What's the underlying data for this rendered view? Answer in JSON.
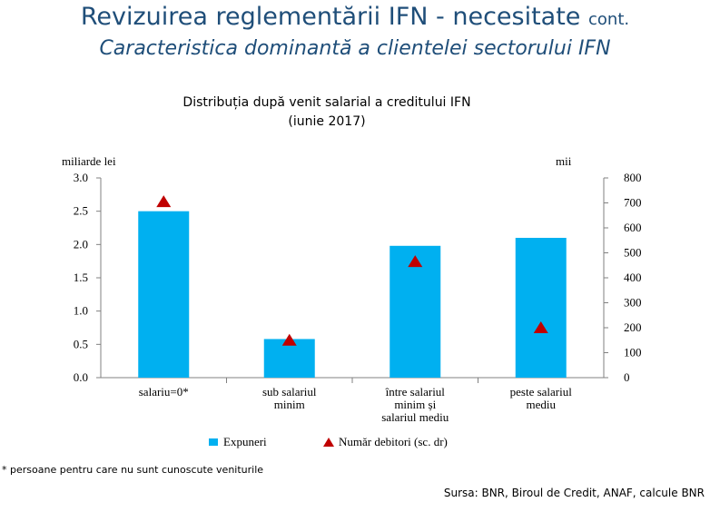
{
  "header": {
    "title": "Revizuirea reglementării IFN - necesitate",
    "title_suffix": "cont.",
    "subtitle": "Caracteristica dominantă a clientelei sectorului IFN"
  },
  "chart_data": {
    "type": "bar",
    "title_line1": "Distribuția după venit salarial a creditului IFN",
    "title_line2": "(iunie 2017)",
    "categories": [
      [
        "salariu=0*"
      ],
      [
        "sub salariul",
        "minim"
      ],
      [
        "între salariul",
        "minim și",
        "salariul mediu"
      ],
      [
        "peste salariul",
        "mediu"
      ]
    ],
    "series": [
      {
        "name": "Expuneri",
        "type": "bar",
        "axis": "left",
        "values": [
          2.5,
          0.58,
          1.98,
          2.1
        ],
        "color": "#00b0f0"
      },
      {
        "name": "Număr debitori (sc. dr)",
        "type": "scatter",
        "marker": "triangle",
        "axis": "right",
        "values": [
          705,
          150,
          465,
          200
        ],
        "color": "#c00000"
      }
    ],
    "y_left": {
      "unit": "miliarde lei",
      "min": 0,
      "max": 3.0,
      "ticks": [
        "0.0",
        "0.5",
        "1.0",
        "1.5",
        "2.0",
        "2.5",
        "3.0"
      ]
    },
    "y_right": {
      "unit": "mii",
      "min": 0,
      "max": 800,
      "ticks": [
        "0",
        "100",
        "200",
        "300",
        "400",
        "500",
        "600",
        "700",
        "800"
      ]
    },
    "legend_position": "bottom",
    "grid": false
  },
  "footnote": "* persoane pentru care nu sunt cunoscute veniturile",
  "source": "Sursa: BNR, Biroul de Credit, ANAF, calcule BNR"
}
